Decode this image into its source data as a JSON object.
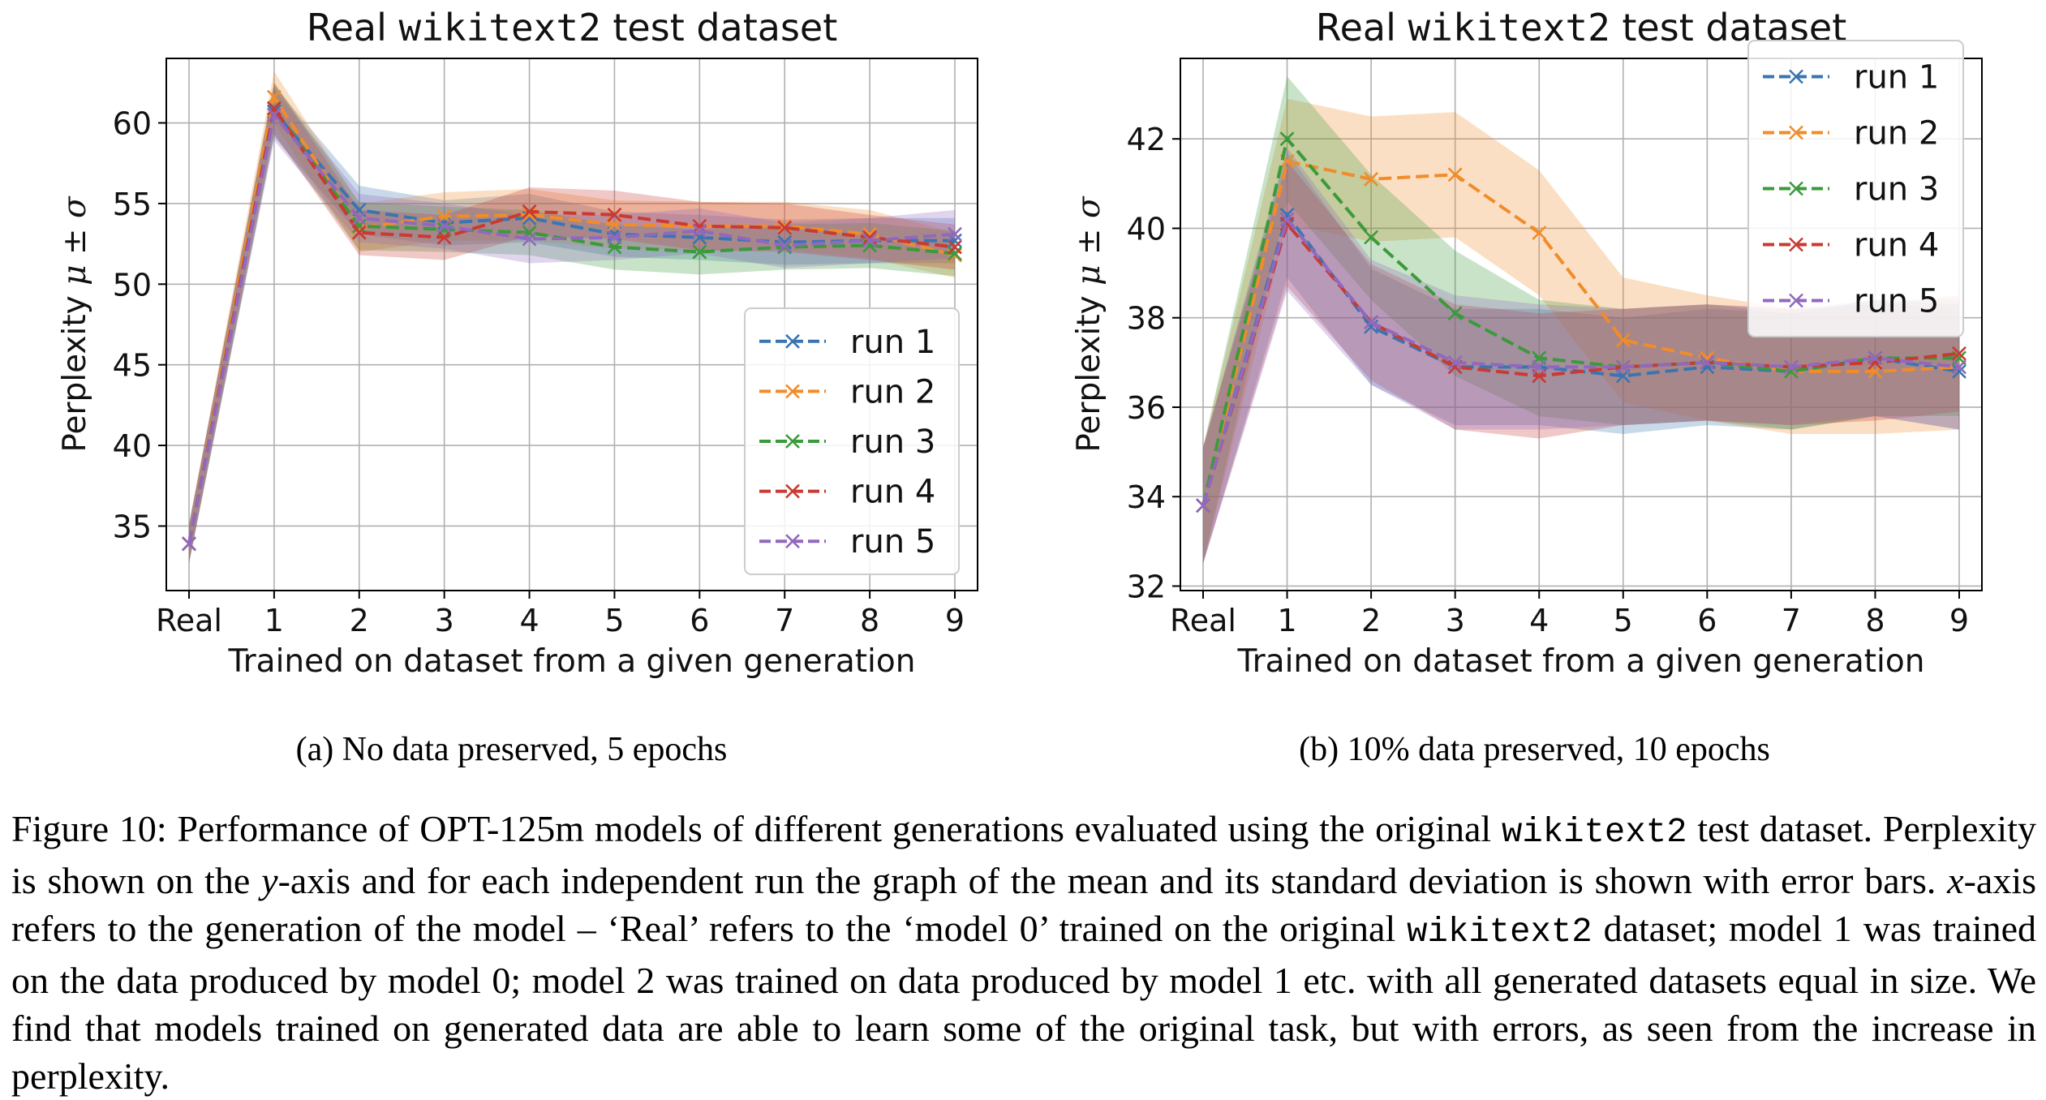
{
  "colors": {
    "run1": "#3a75b0",
    "run2": "#f18c2a",
    "run3": "#3b9a3b",
    "run4": "#c93a32",
    "run5": "#9069be"
  },
  "chart_data": [
    {
      "type": "line",
      "title_prefix": "Real ",
      "title_mono": "wikitext2",
      "title_suffix": " test dataset",
      "xlabel": "Trained on dataset from a given generation",
      "ylabel_text": "Perplexity ",
      "ylabel_math": "μ ± σ",
      "categories": [
        "Real",
        "1",
        "2",
        "3",
        "4",
        "5",
        "6",
        "7",
        "8",
        "9"
      ],
      "ylim": [
        31,
        64
      ],
      "yticks": [
        35,
        40,
        45,
        50,
        55,
        60
      ],
      "grid": true,
      "legend_position": "lower-right",
      "series": [
        {
          "name": "run 1",
          "color": "#3a75b0",
          "values": [
            33.9,
            60.7,
            54.6,
            53.8,
            54.1,
            53.1,
            52.9,
            52.6,
            52.7,
            52.7
          ],
          "std": [
            1.2,
            1.6,
            1.5,
            1.4,
            1.5,
            1.4,
            1.4,
            1.4,
            1.4,
            1.4
          ]
        },
        {
          "name": "run 2",
          "color": "#f18c2a",
          "values": [
            33.9,
            61.6,
            53.5,
            54.2,
            54.3,
            53.7,
            53.6,
            53.6,
            53.1,
            51.8
          ],
          "std": [
            1.2,
            1.6,
            1.5,
            1.5,
            1.6,
            1.5,
            1.5,
            1.5,
            1.5,
            1.4
          ]
        },
        {
          "name": "run 3",
          "color": "#3b9a3b",
          "values": [
            33.9,
            60.9,
            53.6,
            53.4,
            53.2,
            52.3,
            52.0,
            52.3,
            52.4,
            51.9
          ],
          "std": [
            1.2,
            1.6,
            1.5,
            1.4,
            1.4,
            1.4,
            1.4,
            1.4,
            1.4,
            1.4
          ]
        },
        {
          "name": "run 4",
          "color": "#c93a32",
          "values": [
            33.9,
            60.9,
            53.2,
            52.9,
            54.5,
            54.3,
            53.6,
            53.5,
            52.9,
            52.3
          ],
          "std": [
            1.2,
            1.6,
            1.4,
            1.4,
            1.5,
            1.5,
            1.5,
            1.5,
            1.4,
            1.4
          ]
        },
        {
          "name": "run 5",
          "color": "#9069be",
          "values": [
            33.9,
            60.5,
            54.1,
            53.6,
            52.8,
            52.9,
            53.3,
            52.4,
            52.7,
            53.1
          ],
          "std": [
            1.2,
            1.6,
            1.5,
            1.4,
            1.5,
            1.4,
            1.4,
            1.4,
            1.4,
            1.5
          ]
        }
      ]
    },
    {
      "type": "line",
      "title_prefix": "Real ",
      "title_mono": "wikitext2",
      "title_suffix": " test dataset",
      "xlabel": "Trained on dataset from a given generation",
      "ylabel_text": "Perplexity ",
      "ylabel_math": "μ ± σ",
      "categories": [
        "Real",
        "1",
        "2",
        "3",
        "4",
        "5",
        "6",
        "7",
        "8",
        "9"
      ],
      "ylim": [
        31.9,
        43.8
      ],
      "yticks": [
        32,
        34,
        36,
        38,
        40,
        42
      ],
      "grid": true,
      "legend_position": "upper-right",
      "series": [
        {
          "name": "run 1",
          "color": "#3a75b0",
          "values": [
            33.8,
            40.3,
            37.8,
            36.9,
            36.9,
            36.7,
            36.9,
            36.8,
            37.1,
            36.8
          ],
          "std": [
            1.3,
            1.4,
            1.3,
            1.3,
            1.3,
            1.3,
            1.3,
            1.3,
            1.3,
            1.3
          ]
        },
        {
          "name": "run 2",
          "color": "#f18c2a",
          "values": [
            33.8,
            41.5,
            41.1,
            41.2,
            39.9,
            37.5,
            37.1,
            36.8,
            36.8,
            36.9
          ],
          "std": [
            1.3,
            1.4,
            1.4,
            1.4,
            1.4,
            1.4,
            1.4,
            1.4,
            1.4,
            1.4
          ]
        },
        {
          "name": "run 3",
          "color": "#3b9a3b",
          "values": [
            33.8,
            42.0,
            39.8,
            38.1,
            37.1,
            36.9,
            37.0,
            36.8,
            37.1,
            37.1
          ],
          "std": [
            1.3,
            1.4,
            1.4,
            1.4,
            1.3,
            1.3,
            1.3,
            1.3,
            1.3,
            1.3
          ]
        },
        {
          "name": "run 4",
          "color": "#c93a32",
          "values": [
            33.8,
            40.1,
            37.9,
            36.9,
            36.7,
            36.9,
            37.0,
            36.9,
            37.0,
            37.2
          ],
          "std": [
            1.3,
            1.4,
            1.3,
            1.4,
            1.4,
            1.3,
            1.3,
            1.3,
            1.3,
            1.3
          ]
        },
        {
          "name": "run 5",
          "color": "#9069be",
          "values": [
            33.8,
            40.2,
            37.9,
            37.0,
            36.9,
            36.9,
            37.0,
            36.9,
            37.1,
            36.9
          ],
          "std": [
            1.3,
            1.6,
            1.4,
            1.5,
            1.4,
            1.3,
            1.3,
            1.3,
            1.3,
            1.4
          ]
        }
      ]
    }
  ],
  "subcaptions": {
    "a": "(a) No data preserved, 5 epochs",
    "b": "(b) 10% data preserved, 10 epochs"
  },
  "caption": {
    "label": "Figure 10:",
    "t1": " Performance of OPT-125m models of different generations evaluated using the original ",
    "m1": "wikitext2",
    "t2": " test dataset. Perplexity is shown on the ",
    "y": "y",
    "t3": "-axis and for each independent run the graph of the mean and its standard deviation is shown with error bars. ",
    "x": "x",
    "t4": "-axis refers to the generation of the model – ‘Real’ refers to the ‘model 0’ trained on the original ",
    "m2": "wikitext2",
    "t5": " dataset; model 1 was trained on the data produced by model 0; model 2 was trained on data produced by model 1 etc. with all generated datasets equal in size. We find that models trained on generated data are able to learn some of the original task, but with errors, as seen from the increase in perplexity."
  }
}
